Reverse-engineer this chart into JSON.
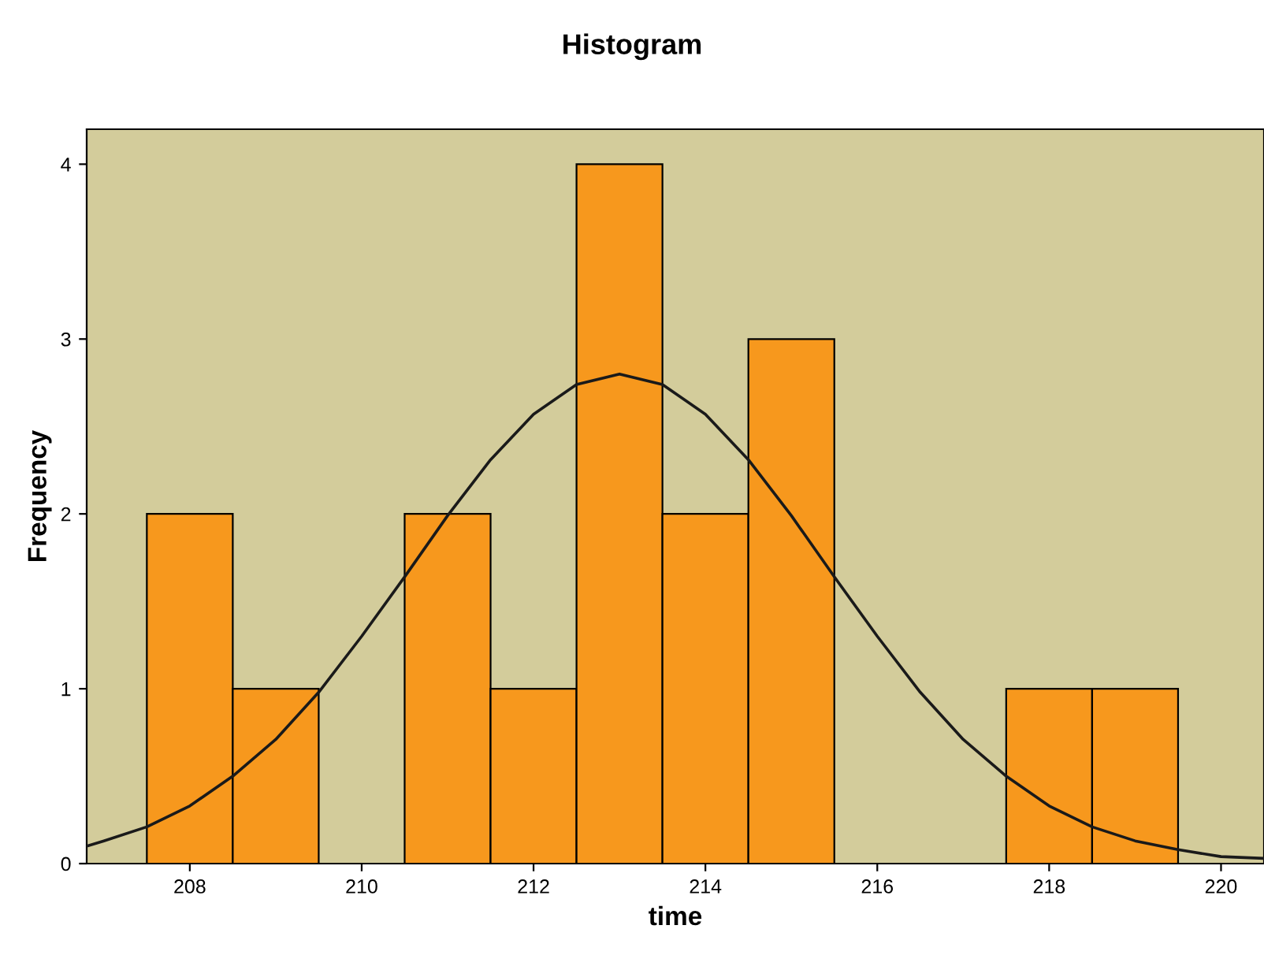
{
  "chart_data": {
    "type": "histogram",
    "title": "Histogram",
    "xlabel": "time",
    "ylabel": "Frequency",
    "bins": [
      207.5,
      208.5,
      209.5,
      210.5,
      211.5,
      212.5,
      213.5,
      214.5,
      215.5,
      216.5,
      217.5,
      218.5,
      219.5
    ],
    "series": [
      {
        "color": "#f7981d",
        "values": [
          2,
          1,
          0,
          2,
          1,
          4,
          2,
          3,
          0,
          0,
          1,
          1
        ]
      },
      {
        "type": "line",
        "color": "#1a1a1a",
        "x": [
          206.8,
          207,
          207.5,
          208,
          208.5,
          209,
          209.5,
          210,
          210.5,
          211,
          211.5,
          212,
          212.5,
          213,
          213.5,
          214,
          214.5,
          215,
          215.5,
          216,
          216.5,
          217,
          217.5,
          218,
          218.5,
          219,
          219.5,
          220,
          220.5
        ],
        "values": [
          0.1,
          0.13,
          0.21,
          0.33,
          0.5,
          0.71,
          0.98,
          1.3,
          1.64,
          1.99,
          2.31,
          2.57,
          2.74,
          2.8,
          2.74,
          2.57,
          2.31,
          1.99,
          1.64,
          1.3,
          0.98,
          0.71,
          0.5,
          0.33,
          0.21,
          0.13,
          0.08,
          0.04,
          0.03
        ]
      }
    ],
    "xlim": [
      206.8,
      220.5
    ],
    "ylim": [
      0,
      4.2
    ],
    "xticks": [
      208,
      210,
      212,
      214,
      216,
      218,
      220
    ],
    "yticks": [
      0,
      1,
      2,
      3,
      4
    ]
  }
}
